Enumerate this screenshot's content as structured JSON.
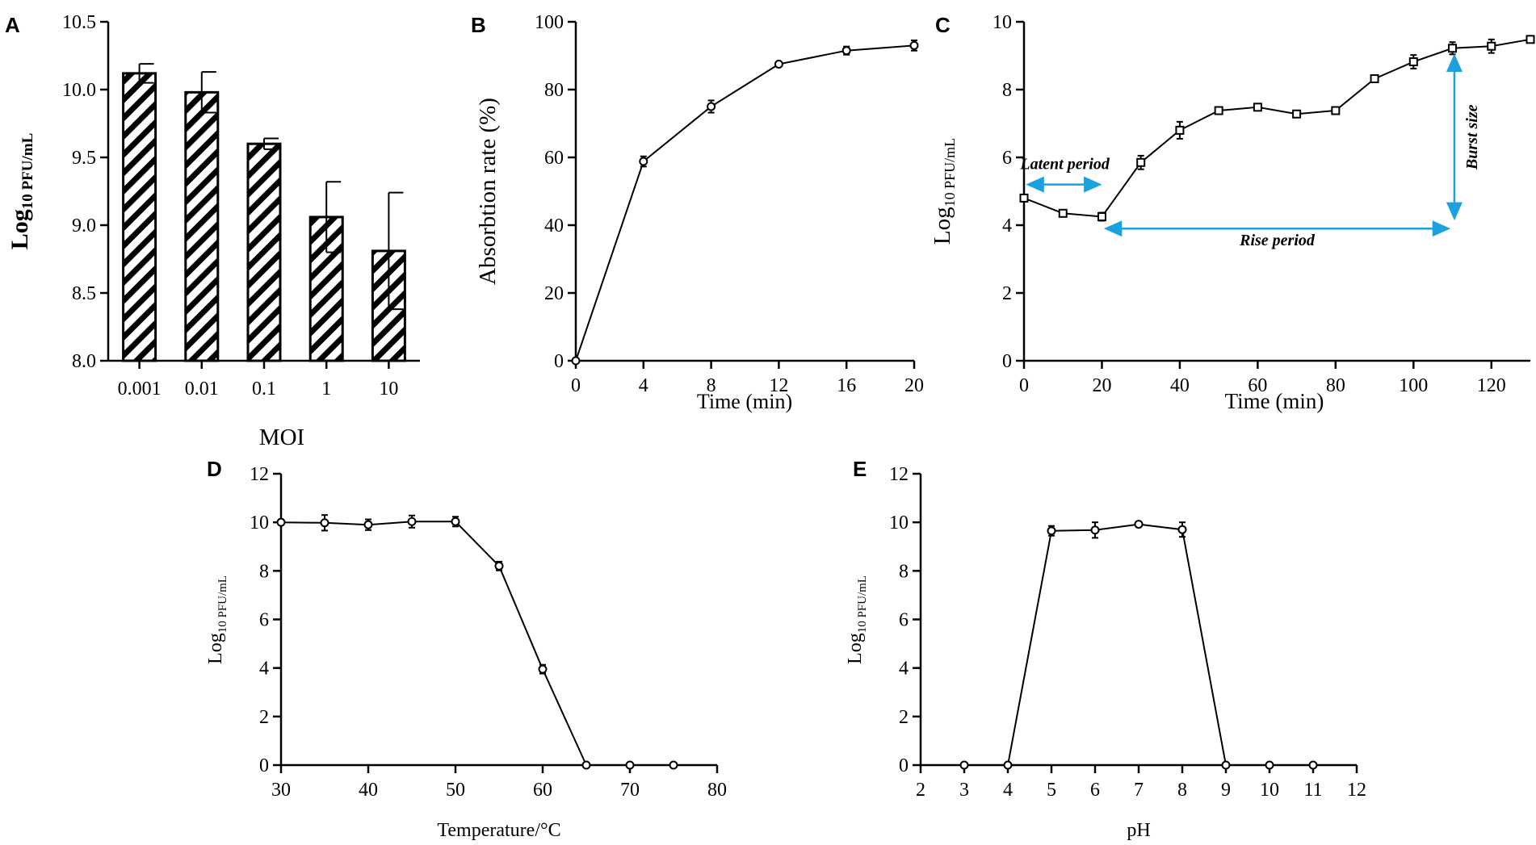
{
  "chart_data": [
    {
      "panel": "A",
      "type": "bar",
      "title": "",
      "xlabel": "MOI",
      "ylabel_main": "Log",
      "ylabel_sub": "10 PFU/mL",
      "categories": [
        "0.001",
        "0.01",
        "0.1",
        "1",
        "10"
      ],
      "values": [
        10.12,
        9.98,
        9.6,
        9.06,
        8.81
      ],
      "errors": [
        0.07,
        0.15,
        0.04,
        0.26,
        0.43
      ],
      "ylim": [
        8.0,
        10.5
      ],
      "yticks": [
        "8.0",
        "8.5",
        "9.0",
        "9.5",
        "10.0",
        "10.5"
      ]
    },
    {
      "panel": "B",
      "type": "line",
      "title": "",
      "xlabel": "Time (min)",
      "ylabel": "Absorbtion rate (%)",
      "x": [
        0,
        4,
        8,
        12,
        16,
        20
      ],
      "y": [
        0,
        58.8,
        75,
        87.5,
        91.5,
        93
      ],
      "errors": [
        0,
        1.5,
        1.8,
        0.5,
        1.2,
        1.5
      ],
      "xlim": [
        0,
        20
      ],
      "ylim": [
        0,
        100
      ],
      "xticks": [
        "0",
        "4",
        "8",
        "12",
        "16",
        "20"
      ],
      "yticks": [
        "0",
        "20",
        "40",
        "60",
        "80",
        "100"
      ]
    },
    {
      "panel": "C",
      "type": "line",
      "title": "",
      "xlabel": "Time (min)",
      "ylabel_main": "Log",
      "ylabel_sub": "10 PFU/mL",
      "x": [
        0,
        10,
        20,
        30,
        40,
        50,
        60,
        70,
        80,
        90,
        100,
        110,
        120,
        130
      ],
      "y": [
        4.8,
        4.35,
        4.25,
        5.85,
        6.8,
        7.38,
        7.48,
        7.28,
        7.38,
        8.32,
        8.82,
        9.22,
        9.28,
        9.48
      ],
      "errors": [
        0.1,
        0.08,
        0.12,
        0.2,
        0.25,
        0.05,
        0.06,
        0.06,
        0.06,
        0.08,
        0.2,
        0.18,
        0.2,
        0.05
      ],
      "xlim": [
        0,
        130
      ],
      "ylim": [
        0,
        10
      ],
      "xticks": [
        "0",
        "20",
        "40",
        "60",
        "80",
        "100",
        "120"
      ],
      "yticks": [
        "0",
        "2",
        "4",
        "6",
        "8",
        "10"
      ],
      "annotations": {
        "latent": "Latent period",
        "rise": "Rise period",
        "burst": "Burst size"
      }
    },
    {
      "panel": "D",
      "type": "line",
      "title": "",
      "xlabel": "Temperature/°C",
      "ylabel_main": "Log",
      "ylabel_sub": "10 PFU/mL",
      "x": [
        30,
        35,
        40,
        45,
        50,
        55,
        60,
        65,
        70,
        75
      ],
      "y": [
        10.0,
        9.98,
        9.9,
        10.03,
        10.03,
        8.2,
        3.95,
        0,
        0,
        0
      ],
      "errors": [
        0.1,
        0.32,
        0.22,
        0.25,
        0.2,
        0.18,
        0.18,
        0,
        0,
        0
      ],
      "xlim": [
        30,
        80
      ],
      "ylim": [
        0,
        12
      ],
      "xticks": [
        "30",
        "40",
        "50",
        "60",
        "70",
        "80"
      ],
      "yticks": [
        "0",
        "2",
        "4",
        "6",
        "8",
        "10",
        "12"
      ]
    },
    {
      "panel": "E",
      "type": "line",
      "title": "",
      "xlabel": "pH",
      "ylabel_main": "Log",
      "ylabel_sub": "10 PFU/mL",
      "x": [
        3,
        4,
        5,
        6,
        7,
        8,
        9,
        10,
        11
      ],
      "y": [
        0,
        0,
        9.65,
        9.68,
        9.92,
        9.7,
        0,
        0,
        0
      ],
      "errors": [
        0,
        0,
        0.2,
        0.32,
        0.1,
        0.3,
        0,
        0,
        0
      ],
      "xlim": [
        2,
        12
      ],
      "ylim": [
        0,
        12
      ],
      "xticks": [
        "2",
        "3",
        "4",
        "5",
        "6",
        "7",
        "8",
        "9",
        "10",
        "11",
        "12"
      ],
      "yticks": [
        "0",
        "2",
        "4",
        "6",
        "8",
        "10",
        "12"
      ]
    }
  ]
}
